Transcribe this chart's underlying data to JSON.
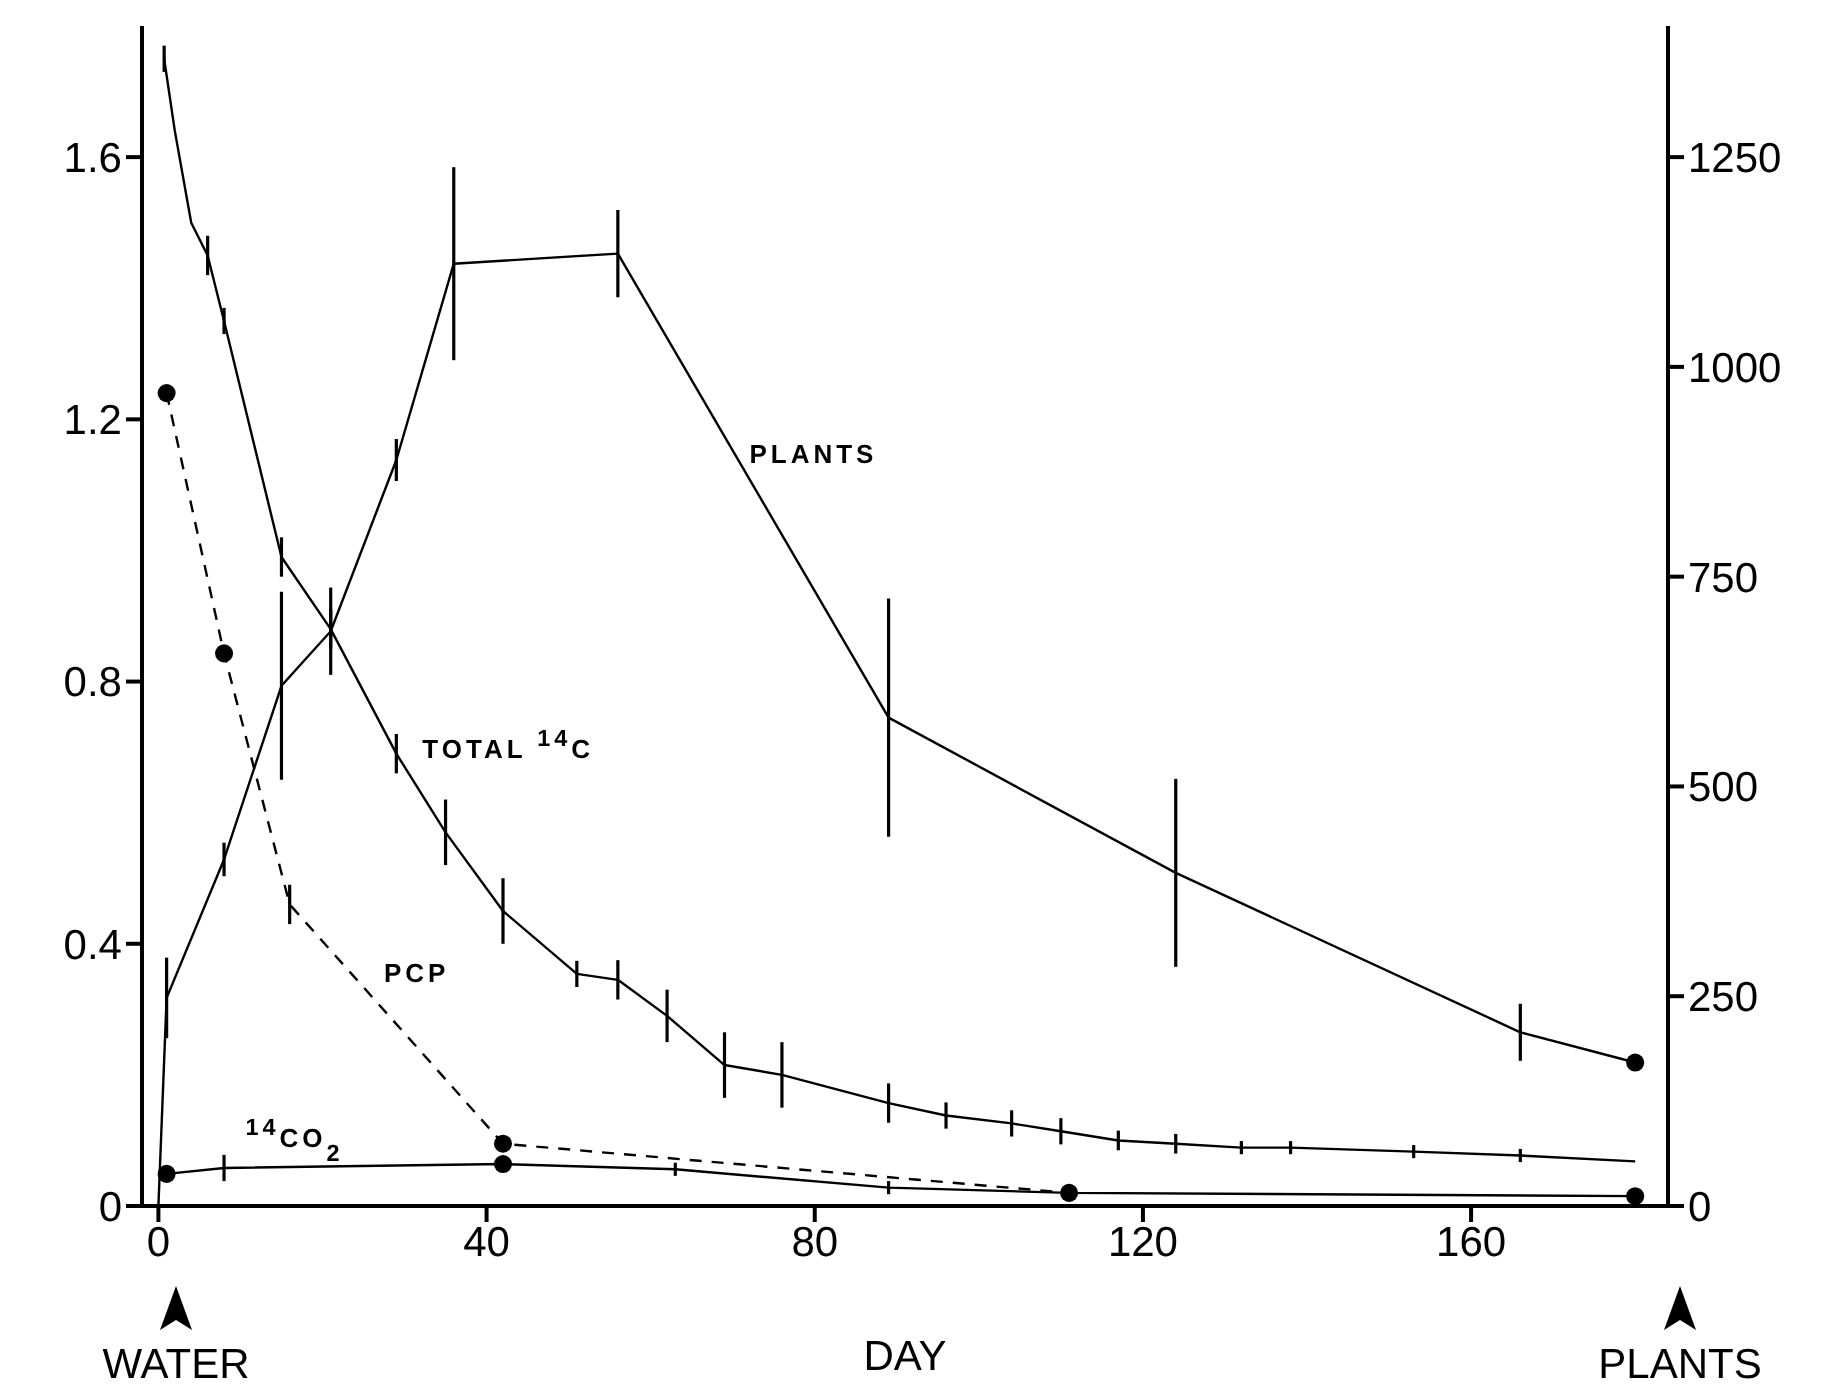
{
  "chart_data": {
    "type": "line",
    "xlabel": "DAY",
    "xlim": [
      -2,
      184
    ],
    "xticks": [
      0,
      40,
      80,
      120,
      160
    ],
    "ylim": [
      0,
      1.8
    ],
    "yticks": [
      0,
      0.4,
      0.8,
      1.2,
      1.6
    ],
    "y2lim": [
      0,
      1406.25
    ],
    "y2ticks": [
      0,
      250,
      500,
      750,
      1000,
      1250
    ],
    "marker": "none",
    "line_style": "solid",
    "annotations": [
      "WATER",
      "PLANTS"
    ],
    "series": [
      {
        "name": "TOTAL $^{14}$C",
        "color": "#000000",
        "x": [
          0.7,
          2,
          4,
          6,
          8,
          15,
          21,
          29,
          35,
          42,
          51,
          56,
          62,
          69,
          76,
          89,
          96,
          104,
          110,
          117,
          124,
          132,
          138,
          153,
          166,
          180
        ],
        "values": [
          1.75,
          1.64,
          1.5,
          1.45,
          1.35,
          0.99,
          0.88,
          0.69,
          0.57,
          0.45,
          0.354,
          0.345,
          0.29,
          0.215,
          0.2,
          0.157,
          0.138,
          0.126,
          0.114,
          0.1,
          0.095,
          0.089,
          0.089,
          0.083,
          0.077,
          0.068
        ],
        "errors": [
          0.02,
          null,
          null,
          0.03,
          0.02,
          0.03,
          0.03,
          0.03,
          0.05,
          0.05,
          0.02,
          0.03,
          0.04,
          0.05,
          0.05,
          0.03,
          0.02,
          0.02,
          0.02,
          0.015,
          0.015,
          0.01,
          0.01,
          0.01,
          0.01,
          null
        ]
      },
      {
        "name": "PCP",
        "color": "#000000",
        "line_style": "dashed",
        "x": [
          1,
          8,
          16,
          42,
          111
        ],
        "values": [
          1.24,
          0.843,
          0.46,
          0.095,
          0.02
        ],
        "errors": [
          null,
          null,
          0.03,
          null,
          null
        ]
      },
      {
        "name": "$^{14}$CO$_{2}$",
        "color": "#000000",
        "x": [
          1,
          8,
          42,
          63,
          89,
          111,
          180
        ],
        "values": [
          0.049,
          0.058,
          0.064,
          0.056,
          0.028,
          0.02,
          0.015
        ],
        "errors": [
          null,
          0.02,
          null,
          0.01,
          0.01,
          null,
          null
        ]
      },
      {
        "name": "PLANTS",
        "color": "#000000",
        "axis": "y2",
        "x": [
          0,
          1,
          8,
          15,
          21,
          29,
          36,
          56,
          89,
          124,
          166,
          180
        ],
        "values": [
          0,
          248,
          413,
          620,
          685,
          889,
          1123,
          1135,
          582,
          397,
          207,
          171
        ],
        "errors": [
          null,
          48,
          20,
          112,
          52,
          25,
          115,
          52,
          142,
          112,
          34,
          null
        ]
      },
      {
        "type": "scatter",
        "color": "#000000",
        "marker": "circle",
        "x": [
          1,
          8,
          42,
          111,
          1,
          42,
          180
        ],
        "values": [
          1.24,
          0.843,
          0.095,
          0.02,
          0.049,
          0.064,
          0.015
        ]
      },
      {
        "type": "scatter",
        "color": "#000000",
        "marker": "circle",
        "axis": "y2",
        "x": [
          180
        ],
        "values": [
          171
        ]
      }
    ]
  }
}
